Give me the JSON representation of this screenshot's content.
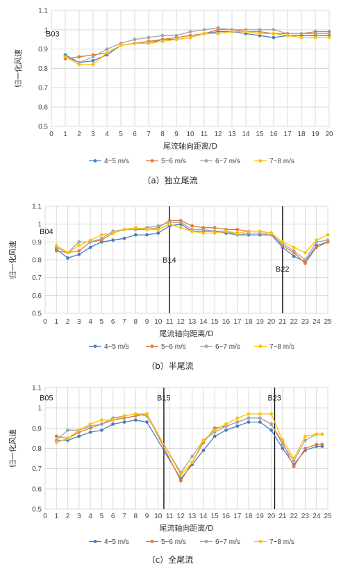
{
  "chart_data": [
    {
      "type": "line",
      "caption": "（a）独立尾流",
      "xlabel": "尾流轴向距离/D",
      "ylabel": "归一化风速",
      "xlim": [
        0,
        20
      ],
      "ylim": [
        0.5,
        1.1
      ],
      "x_ticks": [
        0,
        1,
        2,
        3,
        4,
        5,
        6,
        7,
        8,
        9,
        10,
        11,
        12,
        13,
        14,
        15,
        16,
        17,
        18,
        19,
        20
      ],
      "y_ticks": [
        0.5,
        0.6,
        0.7,
        0.8,
        0.9,
        1.0,
        1.1
      ],
      "y_tick_labels": [
        "0.5",
        "0.6",
        "0.7",
        "0.8",
        "0.9",
        "1",
        "1.1"
      ],
      "grid": true,
      "legend_position": "bottom",
      "annotations": [
        {
          "text": "B03",
          "x": 0.25,
          "y": 0.98,
          "line": false
        }
      ],
      "x": [
        1,
        2,
        3,
        4,
        5,
        6,
        7,
        8,
        9,
        10,
        11,
        12,
        13,
        14,
        15,
        16,
        17,
        18,
        19,
        20
      ],
      "series": [
        {
          "name": "4~5 m/s",
          "color": "#4a7ebb",
          "values": [
            0.87,
            0.83,
            0.84,
            0.87,
            0.92,
            0.93,
            0.93,
            0.95,
            0.95,
            0.96,
            0.98,
            0.99,
            0.99,
            0.98,
            0.97,
            0.96,
            0.97,
            0.97,
            0.97,
            0.97
          ]
        },
        {
          "name": "5~6 m/s",
          "color": "#e07b39",
          "values": [
            0.85,
            0.86,
            0.87,
            0.88,
            0.92,
            0.93,
            0.94,
            0.95,
            0.96,
            0.97,
            0.98,
            1.0,
            1.0,
            0.99,
            0.99,
            0.98,
            0.98,
            0.98,
            0.99,
            0.99
          ]
        },
        {
          "name": "6~7 m/s",
          "color": "#a5a5a5",
          "values": [
            0.86,
            0.83,
            0.86,
            0.9,
            0.93,
            0.95,
            0.96,
            0.97,
            0.97,
            0.99,
            1.0,
            1.01,
            1.0,
            1.0,
            1.0,
            1.0,
            0.98,
            0.98,
            0.98,
            0.98
          ]
        },
        {
          "name": "7~8 m/s",
          "color": "#ffc000",
          "values": [
            0.86,
            0.82,
            0.82,
            0.88,
            0.92,
            0.93,
            0.93,
            0.94,
            0.95,
            0.96,
            0.98,
            0.98,
            0.99,
            0.99,
            0.98,
            0.98,
            0.97,
            0.96,
            0.96,
            0.96
          ]
        }
      ]
    },
    {
      "type": "line",
      "caption": "（b）半尾流",
      "xlabel": "尾流轴向距离/D",
      "ylabel": "归一化风速",
      "xlim": [
        0,
        25
      ],
      "ylim": [
        0.5,
        1.1
      ],
      "x_ticks": [
        0,
        1,
        2,
        3,
        4,
        5,
        6,
        7,
        8,
        9,
        10,
        11,
        12,
        13,
        14,
        15,
        16,
        17,
        18,
        19,
        20,
        21,
        22,
        23,
        24,
        25
      ],
      "y_ticks": [
        0.5,
        0.6,
        0.7,
        0.8,
        0.9,
        1.0,
        1.1
      ],
      "y_tick_labels": [
        "0.5",
        "0.6",
        "0.7",
        "0.8",
        "0.9",
        "1",
        "1.1"
      ],
      "grid": true,
      "legend_position": "bottom",
      "annotations": [
        {
          "text": "B04",
          "x": 0.25,
          "y": 0.96,
          "line": false
        },
        {
          "text": "B14",
          "x": 11,
          "y": 0.8,
          "line": true
        },
        {
          "text": "B22",
          "x": 21,
          "y": 0.75,
          "line": true
        }
      ],
      "x": [
        1,
        2,
        3,
        4,
        5,
        6,
        7,
        8,
        9,
        10,
        11,
        12,
        13,
        14,
        15,
        16,
        17,
        18,
        19,
        20,
        21,
        22,
        23,
        24,
        25
      ],
      "series": [
        {
          "name": "4~5 m/s",
          "color": "#4a7ebb",
          "values": [
            0.86,
            0.81,
            0.83,
            0.87,
            0.9,
            0.91,
            0.92,
            0.94,
            0.94,
            0.95,
            0.99,
            1.0,
            0.96,
            0.96,
            0.96,
            0.95,
            0.94,
            0.94,
            0.94,
            0.94,
            0.87,
            0.82,
            0.79,
            0.88,
            0.9
          ]
        },
        {
          "name": "5~6 m/s",
          "color": "#e07b39",
          "values": [
            0.85,
            0.84,
            0.85,
            0.9,
            0.91,
            0.95,
            0.97,
            0.97,
            0.97,
            0.98,
            1.02,
            1.02,
            0.99,
            0.98,
            0.98,
            0.97,
            0.97,
            0.96,
            0.96,
            0.95,
            0.88,
            0.84,
            0.78,
            0.87,
            0.9
          ]
        },
        {
          "name": "6~7 m/s",
          "color": "#a5a5a5",
          "values": [
            0.87,
            0.84,
            0.9,
            0.9,
            0.92,
            0.96,
            0.97,
            0.97,
            0.98,
            0.99,
            1.01,
            1.01,
            0.97,
            0.97,
            0.96,
            0.96,
            0.94,
            0.95,
            0.95,
            0.94,
            0.89,
            0.85,
            0.8,
            0.9,
            0.91
          ]
        },
        {
          "name": "7~8 m/s",
          "color": "#ffc000",
          "values": [
            0.88,
            0.84,
            0.88,
            0.91,
            0.94,
            0.95,
            0.97,
            0.98,
            0.97,
            0.97,
            1.0,
            0.98,
            0.96,
            0.95,
            0.95,
            0.96,
            0.95,
            0.96,
            0.96,
            0.95,
            0.9,
            0.87,
            0.84,
            0.91,
            0.94
          ]
        }
      ]
    },
    {
      "type": "line",
      "caption": "（c）全尾流",
      "xlabel": "尾流轴向距离/D",
      "ylabel": "归一化风速",
      "xlim": [
        0,
        25
      ],
      "ylim": [
        0.5,
        1.1
      ],
      "x_ticks": [
        0,
        1,
        2,
        3,
        4,
        5,
        6,
        7,
        8,
        9,
        10,
        11,
        12,
        13,
        14,
        15,
        16,
        17,
        18,
        19,
        20,
        21,
        22,
        23,
        24,
        25
      ],
      "y_ticks": [
        0.5,
        0.6,
        0.7,
        0.8,
        0.9,
        1.0,
        1.1
      ],
      "y_tick_labels": [
        "0.5",
        "0.6",
        "0.7",
        "0.8",
        "0.9",
        "1",
        "1.1"
      ],
      "grid": true,
      "legend_position": "bottom",
      "annotations": [
        {
          "text": "B05",
          "x": 0.25,
          "y": 1.05,
          "line": false
        },
        {
          "text": "B15",
          "x": 10.5,
          "y": 1.05,
          "line": true
        },
        {
          "text": "B23",
          "x": 20.3,
          "y": 1.05,
          "line": true
        }
      ],
      "x": [
        1,
        2,
        3,
        4,
        5,
        6,
        7,
        8,
        9,
        12,
        13,
        14,
        15,
        16,
        17,
        18,
        19,
        20,
        21,
        22,
        23,
        24,
        24.5
      ],
      "series": [
        {
          "name": "4~5 m/s",
          "color": "#4a7ebb",
          "values": [
            0.84,
            0.84,
            0.86,
            0.88,
            0.89,
            0.92,
            0.93,
            0.94,
            0.93,
            0.65,
            0.72,
            0.79,
            0.86,
            0.89,
            0.91,
            0.93,
            0.93,
            0.89,
            0.8,
            0.72,
            0.79,
            0.81,
            0.81
          ]
        },
        {
          "name": "5~6 m/s",
          "color": "#e07b39",
          "values": [
            0.86,
            0.85,
            0.88,
            0.9,
            0.92,
            0.94,
            0.95,
            0.96,
            0.97,
            0.64,
            0.73,
            0.83,
            0.9,
            0.91,
            0.93,
            0.95,
            0.95,
            0.92,
            0.83,
            0.71,
            0.8,
            0.82,
            0.82
          ]
        },
        {
          "name": "6~7 m/s",
          "color": "#a5a5a5",
          "values": [
            0.84,
            0.89,
            0.89,
            0.91,
            0.92,
            0.95,
            0.96,
            0.97,
            0.96,
            0.68,
            0.76,
            0.84,
            0.88,
            0.91,
            0.93,
            0.95,
            0.95,
            0.92,
            0.82,
            0.74,
            0.84,
            0.87,
            0.87
          ]
        },
        {
          "name": "7~8 m/s",
          "color": "#ffc000",
          "values": [
            0.83,
            0.85,
            0.89,
            0.92,
            0.94,
            0.94,
            0.96,
            0.97,
            0.97,
            0.67,
            0.73,
            0.84,
            0.89,
            0.92,
            0.95,
            0.97,
            0.97,
            0.97,
            0.84,
            0.75,
            0.86,
            0.87,
            0.87
          ]
        }
      ]
    }
  ]
}
